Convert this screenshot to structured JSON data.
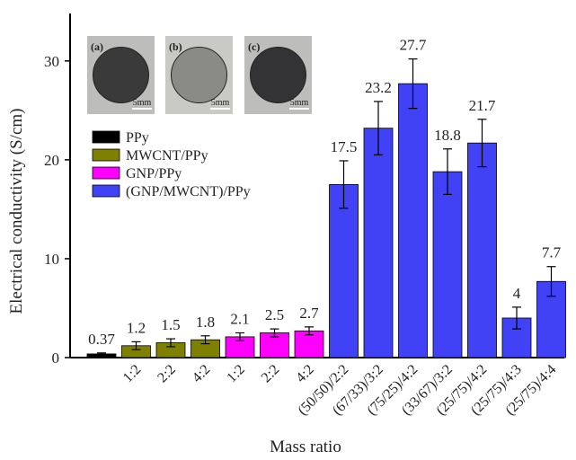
{
  "chart_data": {
    "type": "bar",
    "x_label": "Mass ratio",
    "y_label": "Electrical conductivity (S/cm)",
    "categories": [
      null,
      "1:2",
      "2:2",
      "4:2",
      "1:2",
      "2:2",
      "4:2",
      "(50/50)/2:2",
      "(67/33)/3:2",
      "(75/25)/4:2",
      "(33/67)/3:2",
      "(25/75)/4:2",
      "(25/75)/4:3",
      "(25/75)/4:4"
    ],
    "series": [
      {
        "name": "PPy",
        "color": "#000000",
        "values": [
          0.37,
          null,
          null,
          null,
          null,
          null,
          null,
          null,
          null,
          null,
          null,
          null,
          null,
          null
        ],
        "errors": [
          0.1,
          null,
          null,
          null,
          null,
          null,
          null,
          null,
          null,
          null,
          null,
          null,
          null,
          null
        ]
      },
      {
        "name": "MWCNT/PPy",
        "color": "#808000",
        "values": [
          null,
          1.2,
          1.5,
          1.8,
          null,
          null,
          null,
          null,
          null,
          null,
          null,
          null,
          null,
          null
        ],
        "errors": [
          null,
          0.4,
          0.4,
          0.4,
          null,
          null,
          null,
          null,
          null,
          null,
          null,
          null,
          null,
          null
        ]
      },
      {
        "name": "GNP/PPy",
        "color": "#ff00ff",
        "values": [
          null,
          null,
          null,
          null,
          2.1,
          2.5,
          2.7,
          null,
          null,
          null,
          null,
          null,
          null,
          null
        ],
        "errors": [
          null,
          null,
          null,
          null,
          0.4,
          0.4,
          0.4,
          null,
          null,
          null,
          null,
          null,
          null,
          null
        ]
      },
      {
        "name": "(GNP/MWCNT)/PPy",
        "color": "#4141f5",
        "values": [
          null,
          null,
          null,
          null,
          null,
          null,
          null,
          17.5,
          23.2,
          27.7,
          18.8,
          21.7,
          4,
          7.7
        ],
        "errors": [
          null,
          null,
          null,
          null,
          null,
          null,
          null,
          2.4,
          2.7,
          2.5,
          2.3,
          2.4,
          1.1,
          1.5
        ]
      }
    ],
    "ylim": [
      0,
      34.8
    ],
    "yticks": [
      0,
      10,
      20,
      30
    ],
    "grid": false,
    "legend": "upper left",
    "insets": [
      {
        "label": "(a)",
        "scale": "5mm",
        "tone": "#3a3a3a"
      },
      {
        "label": "(b)",
        "scale": "5mm",
        "tone": "#8a8a86"
      },
      {
        "label": "(c)",
        "scale": "5mm",
        "tone": "#333336"
      }
    ]
  }
}
